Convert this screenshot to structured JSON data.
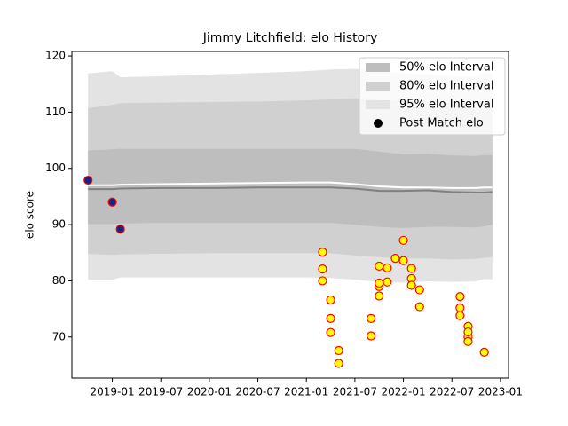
{
  "chart_data": {
    "type": "band",
    "title": "Jimmy Litchfield: elo History",
    "y_label": "elo score",
    "xlim": [
      "2018-08",
      "2023-02"
    ],
    "xticks": [
      "2019-01",
      "2019-07",
      "2020-01",
      "2020-07",
      "2021-01",
      "2021-07",
      "2022-01",
      "2022-07",
      "2023-01"
    ],
    "ylim": [
      62.7,
      120.8
    ],
    "yticks": [
      70,
      80,
      90,
      100,
      110,
      120
    ],
    "grid": false,
    "legend": "upper right",
    "x": [
      "2018-10",
      "2019-01",
      "2019-02",
      "2019-07",
      "2020-01",
      "2020-07",
      "2021-01",
      "2021-04",
      "2021-07",
      "2021-10",
      "2022-01",
      "2022-04",
      "2022-07",
      "2022-10",
      "2022-11",
      "2022-12"
    ],
    "bands": [
      {
        "name": "50% elo Interval",
        "color": "#bebebe",
        "upper": [
          103.2,
          103.4,
          103.5,
          103.5,
          103.5,
          103.5,
          103.5,
          103.5,
          103.5,
          103.0,
          102.5,
          102.6,
          102.3,
          102.2,
          102.4,
          102.3
        ],
        "lower": [
          90.1,
          90.1,
          90.2,
          90.3,
          90.3,
          90.3,
          90.3,
          90.3,
          90.0,
          89.6,
          89.4,
          89.6,
          89.6,
          89.5,
          89.7,
          90.0
        ]
      },
      {
        "name": "80% elo Interval",
        "color": "#d0d0d0",
        "upper": [
          110.7,
          111.3,
          111.6,
          111.7,
          111.8,
          111.9,
          112.1,
          112.3,
          112.5,
          112.2,
          111.9,
          111.8,
          111.6,
          111.6,
          112.0,
          111.9
        ],
        "lower": [
          84.8,
          84.6,
          84.7,
          84.8,
          84.9,
          84.9,
          84.9,
          84.9,
          84.5,
          84.2,
          84.0,
          84.0,
          83.8,
          83.9,
          84.1,
          84.2
        ]
      },
      {
        "name": "95% elo Interval",
        "color": "#e3e3e3",
        "upper": [
          116.9,
          117.3,
          116.2,
          116.4,
          116.7,
          117.0,
          117.3,
          117.6,
          117.7,
          117.3,
          116.9,
          116.7,
          116.4,
          116.4,
          117.0,
          116.9
        ],
        "lower": [
          80.2,
          80.2,
          80.6,
          80.6,
          80.6,
          80.6,
          80.6,
          80.5,
          80.2,
          79.8,
          79.7,
          79.9,
          79.8,
          79.9,
          80.3,
          80.3
        ]
      }
    ],
    "lines": [
      {
        "color": "#808080",
        "values": [
          96.3,
          96.3,
          96.4,
          96.5,
          96.5,
          96.6,
          96.6,
          96.6,
          96.4,
          96.0,
          96.0,
          96.1,
          95.8,
          95.7,
          95.7,
          95.8
        ]
      },
      {
        "color": "#ffffff",
        "values": [
          97.0,
          97.0,
          97.1,
          97.2,
          97.3,
          97.4,
          97.5,
          97.5,
          97.2,
          96.8,
          96.6,
          96.6,
          96.5,
          96.5,
          96.6,
          96.6
        ]
      }
    ],
    "scatter": {
      "name": "Post Match elo",
      "legend_color": "#000000",
      "edgecolor": "#ff0000",
      "x": [
        "2018-10",
        "2019-01",
        "2019-02",
        "2021-03",
        "2021-03",
        "2021-03",
        "2021-04",
        "2021-04",
        "2021-04",
        "2021-05",
        "2021-05",
        "2021-09",
        "2021-09",
        "2021-10",
        "2021-10",
        "2021-10",
        "2021-10",
        "2021-11",
        "2021-11",
        "2021-12",
        "2022-01",
        "2022-01",
        "2022-02",
        "2022-02",
        "2022-02",
        "2022-03",
        "2022-03",
        "2022-08",
        "2022-08",
        "2022-08",
        "2022-09",
        "2022-09",
        "2022-09",
        "2022-09",
        "2022-11"
      ],
      "values": [
        97.9,
        94.0,
        89.2,
        85.1,
        82.1,
        80.0,
        76.6,
        73.3,
        70.8,
        67.6,
        65.3,
        70.2,
        73.3,
        77.3,
        79.0,
        82.6,
        79.6,
        82.3,
        79.8,
        84.0,
        87.2,
        83.6,
        80.4,
        79.2,
        82.2,
        78.4,
        75.4,
        77.2,
        75.2,
        73.8,
        71.9,
        70.0,
        70.9,
        69.2,
        67.3
      ],
      "colors": [
        "#1a237e",
        "#1a237e",
        "#1a237e",
        "#ffff00",
        "#ffff00",
        "#ffff00",
        "#ffff00",
        "#ffff00",
        "#ffff00",
        "#ffff00",
        "#ffff00",
        "#ffff00",
        "#ffff00",
        "#ffff00",
        "#ffff00",
        "#ffff00",
        "#ffff00",
        "#ffff00",
        "#ffff00",
        "#ffff00",
        "#ffff00",
        "#ffff00",
        "#ffff00",
        "#ffff00",
        "#ffff00",
        "#ffff00",
        "#ffff00",
        "#ffff00",
        "#ffff00",
        "#ffff00",
        "#ffff00",
        "#ffff00",
        "#ffff00",
        "#ffff00",
        "#ffff00"
      ]
    }
  }
}
